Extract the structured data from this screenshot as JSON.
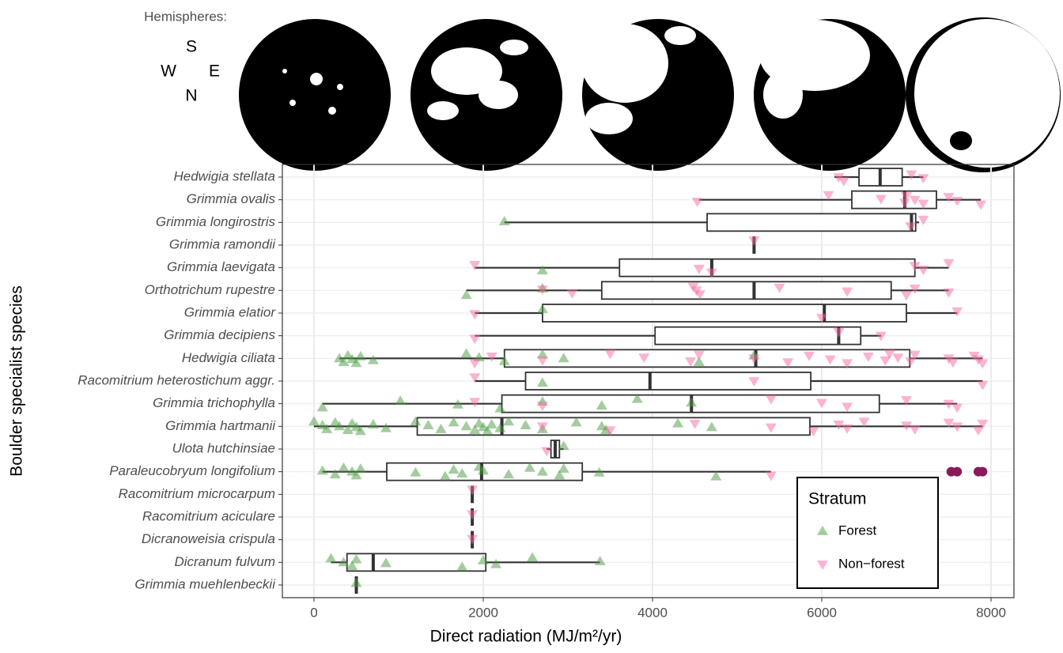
{
  "hemispheres": {
    "label": "Hemispheres:",
    "south": "S",
    "west": "W",
    "east": "E",
    "north": "N"
  },
  "chart_data": {
    "type": "boxplot",
    "x_label": "Direct radiation (MJ/m²/yr)",
    "y_label": "Boulder specialist species",
    "categories": [
      "Hedwigia stellata",
      "Grimmia ovalis",
      "Grimmia longirostris",
      "Grimmia ramondii",
      "Grimmia laevigata",
      "Orthotrichum rupestre",
      "Grimmia elatior",
      "Grimmia decipiens",
      "Hedwigia ciliata",
      "Racomitrium heterostichum aggr.",
      "Grimmia trichophylla",
      "Grimmia hartmanii",
      "Ulota hutchinsiae",
      "Paraleucobryum longifolium",
      "Racomitrium microcarpum",
      "Racomitrium aciculare",
      "Dicranoweisia crispula",
      "Dicranum fulvum",
      "Grimmia muehlenbeckii"
    ],
    "boxes": [
      {
        "low": 6150,
        "q1": 6440,
        "median": 6690,
        "q3": 6950,
        "high": 7200,
        "outliers": []
      },
      {
        "low": 4550,
        "q1": 6355,
        "median": 6980,
        "q3": 7355,
        "high": 7880,
        "outliers": []
      },
      {
        "low": 2250,
        "q1": 4645,
        "median": 7060,
        "q3": 7110,
        "high": 7150,
        "outliers": []
      },
      {
        "low": 5200,
        "q1": 5200,
        "median": 5200,
        "q3": 5200,
        "high": 5200,
        "outliers": []
      },
      {
        "low": 1900,
        "q1": 3610,
        "median": 4700,
        "q3": 7100,
        "high": 7500,
        "outliers": []
      },
      {
        "low": 1800,
        "q1": 3400,
        "median": 5200,
        "q3": 6820,
        "high": 7500,
        "outliers": []
      },
      {
        "low": 1900,
        "q1": 2700,
        "median": 6030,
        "q3": 7000,
        "high": 7600,
        "outliers": []
      },
      {
        "low": 1900,
        "q1": 4030,
        "median": 6200,
        "q3": 6460,
        "high": 6700,
        "outliers": []
      },
      {
        "low": 300,
        "q1": 2250,
        "median": 5220,
        "q3": 7040,
        "high": 7900,
        "outliers": []
      },
      {
        "low": 1900,
        "q1": 2500,
        "median": 3970,
        "q3": 5870,
        "high": 7900,
        "outliers": []
      },
      {
        "low": 100,
        "q1": 2220,
        "median": 4460,
        "q3": 6680,
        "high": 7600,
        "outliers": []
      },
      {
        "low": 0,
        "q1": 1220,
        "median": 2220,
        "q3": 5860,
        "high": 7900,
        "outliers": []
      },
      {
        "low": 2750,
        "q1": 2800,
        "median": 2850,
        "q3": 2900,
        "high": 2950,
        "outliers": []
      },
      {
        "low": 100,
        "q1": 860,
        "median": 1980,
        "q3": 3170,
        "high": 5400,
        "outliers": [
          7530,
          7600,
          7850,
          7900
        ]
      },
      {
        "low": 1870,
        "q1": 1870,
        "median": 1870,
        "q3": 1870,
        "high": 1870,
        "outliers": []
      },
      {
        "low": 1870,
        "q1": 1870,
        "median": 1870,
        "q3": 1870,
        "high": 1870,
        "outliers": []
      },
      {
        "low": 1870,
        "q1": 1870,
        "median": 1870,
        "q3": 1870,
        "high": 1870,
        "outliers": []
      },
      {
        "low": 200,
        "q1": 390,
        "median": 700,
        "q3": 2030,
        "high": 3380,
        "outliers": []
      },
      {
        "low": 500,
        "q1": 500,
        "median": 500,
        "q3": 500,
        "high": 500,
        "outliers": []
      }
    ],
    "box_color": "#333333",
    "outlier_color": "#8b1a5a",
    "series": [
      {
        "name": "Forest",
        "color": "#4a9a3f",
        "marker": "triangle-up",
        "values": [
          [],
          [],
          [
            2250
          ],
          [],
          [
            2700
          ],
          [
            1800,
            2700
          ],
          [
            2700
          ],
          [],
          [
            300,
            350,
            400,
            450,
            500,
            550,
            700,
            1800,
            1950,
            2250,
            2700,
            2950,
            4550,
            5200
          ],
          [
            2700
          ],
          [
            100,
            1020,
            1700,
            2200,
            2700,
            3400,
            3820,
            4460
          ],
          [
            0,
            100,
            150,
            250,
            300,
            400,
            450,
            500,
            550,
            700,
            850,
            1200,
            1350,
            1500,
            1650,
            1800,
            1900,
            1950,
            2000,
            2050,
            2100,
            2200,
            2300,
            2500,
            2700,
            3100,
            3400,
            3450,
            4300,
            4700
          ],
          [
            2950
          ],
          [
            100,
            250,
            350,
            450,
            500,
            550,
            1200,
            1550,
            1650,
            1750,
            1950,
            2000,
            2300,
            2550,
            2700,
            2900,
            2950,
            3370,
            4750
          ],
          [],
          [],
          [],
          [
            200,
            350,
            450,
            500,
            850,
            1750,
            2000,
            2150,
            2580,
            3380
          ],
          [
            500
          ]
        ]
      },
      {
        "name": "Non−forest",
        "color": "#f768a1",
        "marker": "triangle-down",
        "values": [
          [
            6200,
            6260,
            7060,
            7200
          ],
          [
            4530,
            6080,
            6700,
            6980,
            7000,
            7100,
            7200,
            7500,
            7600,
            7880
          ],
          [
            7050,
            7200
          ],
          [
            5200
          ],
          [
            1900,
            4550,
            4700,
            7100,
            7200,
            7500
          ],
          [
            2700,
            3050,
            4480,
            4520,
            4560,
            5500,
            6300,
            7000,
            7100,
            7500
          ],
          [
            1900,
            6000,
            7600
          ],
          [
            1900,
            6200,
            6700
          ],
          [
            1900,
            2100,
            2700,
            3500,
            3900,
            4450,
            4550,
            5200,
            5600,
            5850,
            6100,
            6300,
            6550,
            6750,
            6800,
            6900,
            7050,
            7100,
            7500,
            7550,
            7800,
            7850,
            7900
          ],
          [
            1900,
            5200,
            7900
          ],
          [
            1900,
            2700,
            5400,
            6000,
            6300,
            7000,
            7500,
            7600
          ],
          [
            2700,
            3500,
            4500,
            5400,
            5900,
            6200,
            6300,
            6500,
            7000,
            7100,
            7500,
            7600,
            7850,
            7900
          ],
          [
            2750
          ],
          [
            5400
          ],
          [
            1870
          ],
          [
            1870
          ],
          [
            1870
          ],
          [],
          []
        ]
      }
    ],
    "xlim": [
      -374,
      8271
    ],
    "xticks": [
      0,
      2000,
      4000,
      6000,
      8000
    ],
    "grid": true,
    "legend": {
      "title": "Stratum",
      "position": "bottom-right"
    }
  }
}
